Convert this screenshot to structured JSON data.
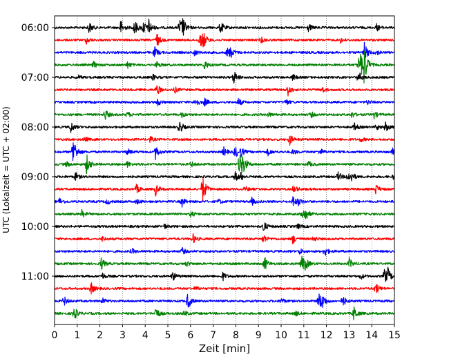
{
  "chart_data": {
    "type": "line",
    "title": "",
    "xlabel": "Zeit  [min]",
    "ylabel": "UTC (Lokalzeit = UTC + 02:00)",
    "xlim": [
      0,
      15
    ],
    "x_ticks": [
      "0",
      "1",
      "2",
      "3",
      "4",
      "5",
      "6",
      "7",
      "8",
      "9",
      "10",
      "11",
      "12",
      "13",
      "14",
      "15"
    ],
    "y_tick_labels": [
      "06:00",
      "07:00",
      "08:00",
      "09:00",
      "10:00",
      "11:00"
    ],
    "grid": "x dotted",
    "legend": "none",
    "trace_minutes": 15,
    "trace_start": "06:00",
    "trace_count": 24,
    "colors": [
      "#000000",
      "#ff0000",
      "#0000ff",
      "#008000"
    ],
    "series": [
      {
        "start": "06:00",
        "color": "#000000",
        "events": [
          [
            1.5,
            1.0
          ],
          [
            2.9,
            1.3
          ],
          [
            3.5,
            1.6
          ],
          [
            3.9,
            1.2
          ],
          [
            4.15,
            1.3
          ],
          [
            5.5,
            1.6
          ],
          [
            5.65,
            1.3
          ],
          [
            7.3,
            1.2
          ],
          [
            11.2,
            0.6
          ],
          [
            14.2,
            0.6
          ]
        ]
      },
      {
        "start": "06:15",
        "color": "#ff0000",
        "events": [
          [
            1.4,
            0.6
          ],
          [
            4.5,
            1.2
          ],
          [
            6.4,
            1.4
          ],
          [
            6.55,
            1.2
          ],
          [
            9.1,
            0.5
          ],
          [
            12.6,
            0.5
          ]
        ]
      },
      {
        "start": "06:30",
        "color": "#0000ff",
        "events": [
          [
            4.4,
            1.0
          ],
          [
            6.15,
            0.6
          ],
          [
            7.6,
            1.0
          ],
          [
            7.75,
            0.8
          ],
          [
            13.65,
            1.8
          ],
          [
            14.2,
            0.5
          ]
        ]
      },
      {
        "start": "06:45",
        "color": "#008000",
        "events": [
          [
            1.7,
            0.6
          ],
          [
            3.2,
            0.6
          ],
          [
            4.5,
            0.6
          ],
          [
            6.6,
            0.9
          ],
          [
            13.4,
            1.3
          ],
          [
            13.65,
            3.0
          ],
          [
            13.5,
            1.6
          ]
        ]
      },
      {
        "start": "07:00",
        "color": "#000000",
        "events": [
          [
            1.0,
            0.4
          ],
          [
            4.3,
            0.6
          ],
          [
            7.9,
            1.2
          ],
          [
            10.5,
            0.5
          ],
          [
            13.4,
            1.0
          ]
        ]
      },
      {
        "start": "07:15",
        "color": "#ff0000",
        "events": [
          [
            4.5,
            1.0
          ],
          [
            5.3,
            0.5
          ],
          [
            10.3,
            0.9
          ],
          [
            11.8,
            0.5
          ]
        ]
      },
      {
        "start": "07:30",
        "color": "#0000ff",
        "events": [
          [
            4.5,
            0.8
          ],
          [
            6.2,
            0.8
          ],
          [
            6.6,
            0.7
          ],
          [
            8.1,
            0.7
          ],
          [
            10.2,
            0.5
          ],
          [
            13.8,
            0.4
          ]
        ]
      },
      {
        "start": "07:45",
        "color": "#008000",
        "events": [
          [
            2.2,
            1.1
          ],
          [
            3.2,
            0.5
          ],
          [
            5.6,
            0.5
          ],
          [
            9.4,
            0.5
          ],
          [
            11.3,
            0.5
          ],
          [
            13.1,
            0.5
          ],
          [
            14.1,
            0.6
          ]
        ]
      },
      {
        "start": "08:00",
        "color": "#000000",
        "events": [
          [
            0.7,
            1.0
          ],
          [
            5.5,
            1.2
          ],
          [
            13.2,
            0.7
          ],
          [
            14.2,
            0.5
          ],
          [
            14.6,
            0.8
          ]
        ]
      },
      {
        "start": "08:15",
        "color": "#ff0000",
        "events": [
          [
            1.3,
            0.5
          ],
          [
            4.2,
            0.5
          ],
          [
            10.35,
            1.0
          ],
          [
            13.5,
            0.4
          ]
        ]
      },
      {
        "start": "08:30",
        "color": "#0000ff",
        "events": [
          [
            0.8,
            3.0
          ],
          [
            3.2,
            0.6
          ],
          [
            4.45,
            1.2
          ],
          [
            7.45,
            0.8
          ],
          [
            7.95,
            1.2
          ],
          [
            8.2,
            0.8
          ],
          [
            9.4,
            0.6
          ],
          [
            10.5,
            0.5
          ],
          [
            11.7,
            0.6
          ],
          [
            14.9,
            0.6
          ]
        ]
      },
      {
        "start": "08:45",
        "color": "#008000",
        "events": [
          [
            0.5,
            0.5
          ],
          [
            1.4,
            1.8
          ],
          [
            3.2,
            0.5
          ],
          [
            6.0,
            0.5
          ],
          [
            8.15,
            2.5
          ],
          [
            8.3,
            1.4
          ],
          [
            11.2,
            0.5
          ]
        ]
      },
      {
        "start": "09:00",
        "color": "#000000",
        "events": [
          [
            0.9,
            0.8
          ],
          [
            7.95,
            0.9
          ],
          [
            8.2,
            0.6
          ],
          [
            12.5,
            0.8
          ],
          [
            12.9,
            1.0
          ],
          [
            13.1,
            0.6
          ],
          [
            14.95,
            0.5
          ]
        ]
      },
      {
        "start": "09:15",
        "color": "#ff0000",
        "events": [
          [
            3.6,
            0.8
          ],
          [
            4.45,
            1.0
          ],
          [
            6.5,
            3.0
          ],
          [
            8.4,
            0.5
          ],
          [
            10.55,
            0.8
          ],
          [
            14.15,
            1.0
          ]
        ]
      },
      {
        "start": "09:30",
        "color": "#0000ff",
        "events": [
          [
            0.2,
            0.6
          ],
          [
            2.3,
            0.5
          ],
          [
            3.6,
            0.5
          ],
          [
            5.6,
            0.9
          ],
          [
            7.2,
            0.5
          ],
          [
            8.7,
            0.6
          ],
          [
            10.5,
            1.0
          ],
          [
            10.75,
            0.6
          ]
        ]
      },
      {
        "start": "09:45",
        "color": "#008000",
        "events": [
          [
            1.2,
            0.6
          ],
          [
            6.0,
            0.5
          ],
          [
            10.9,
            1.3
          ],
          [
            11.05,
            0.9
          ]
        ]
      },
      {
        "start": "10:00",
        "color": "#000000",
        "events": [
          [
            4.8,
            0.5
          ],
          [
            9.2,
            1.1
          ],
          [
            10.7,
            0.5
          ]
        ]
      },
      {
        "start": "10:15",
        "color": "#ff0000",
        "events": [
          [
            2.1,
            0.4
          ],
          [
            6.1,
            0.8
          ],
          [
            9.2,
            0.9
          ],
          [
            10.5,
            0.9
          ],
          [
            11.4,
            0.5
          ]
        ]
      },
      {
        "start": "10:30",
        "color": "#0000ff",
        "events": [
          [
            3.4,
            0.5
          ],
          [
            5.6,
            0.7
          ],
          [
            10.8,
            0.5
          ],
          [
            11.9,
            1.0
          ]
        ]
      },
      {
        "start": "10:45",
        "color": "#008000",
        "events": [
          [
            2.05,
            1.1
          ],
          [
            5.8,
            0.5
          ],
          [
            9.25,
            1.3
          ],
          [
            10.9,
            1.4
          ],
          [
            11.05,
            0.9
          ],
          [
            13.0,
            0.9
          ]
        ]
      },
      {
        "start": "11:00",
        "color": "#000000",
        "events": [
          [
            2.1,
            0.5
          ],
          [
            5.2,
            0.8
          ],
          [
            7.4,
            0.8
          ],
          [
            13.5,
            0.5
          ],
          [
            14.55,
            1.4
          ],
          [
            14.7,
            1.0
          ]
        ]
      },
      {
        "start": "11:15",
        "color": "#ff0000",
        "events": [
          [
            1.6,
            1.0
          ],
          [
            6.2,
            0.4
          ],
          [
            14.15,
            1.2
          ]
        ]
      },
      {
        "start": "11:30",
        "color": "#0000ff",
        "events": [
          [
            0.4,
            0.8
          ],
          [
            2.1,
            0.5
          ],
          [
            5.85,
            1.6
          ],
          [
            10.0,
            0.5
          ],
          [
            11.65,
            1.6
          ],
          [
            11.8,
            1.0
          ],
          [
            12.7,
            1.0
          ]
        ]
      },
      {
        "start": "11:45",
        "color": "#008000",
        "events": [
          [
            0.85,
            1.2
          ],
          [
            4.45,
            1.2
          ],
          [
            5.7,
            0.5
          ],
          [
            13.2,
            1.3
          ],
          [
            10.6,
            0.5
          ]
        ]
      }
    ]
  }
}
